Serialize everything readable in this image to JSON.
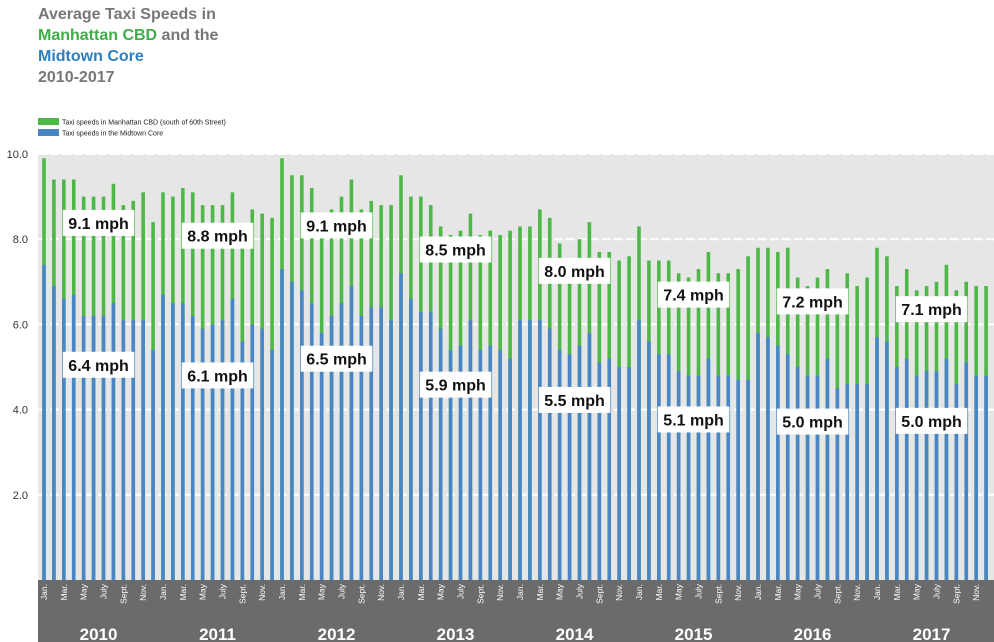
{
  "title": {
    "line1": "Average Taxi Speeds in",
    "line2_green": "Manhattan CBD",
    "line2_rest": " and the",
    "line3_blue": "Midtown Core",
    "line4": "2010-2017"
  },
  "colors": {
    "cbd": "#4db848",
    "midtown": "#4a86c5",
    "plot_bg": "#e6e6e6",
    "axis_bg": "#6b6b6b",
    "title_gray": "#777777"
  },
  "chart_data": {
    "type": "bar",
    "legend": [
      "Taxi speeds in Manhattan CBD (south of 60th Street)",
      "Taxi speeds in the Midtown Core"
    ],
    "legend_position": "top-left",
    "ylim": [
      0,
      10
    ],
    "yticks": [
      "2.0",
      "4.0",
      "6.0",
      "8.0",
      "10.0"
    ],
    "grid": true,
    "month_labels": [
      "Jan.",
      "",
      "Mar.",
      "",
      "May",
      "",
      "July",
      "",
      "Sept.",
      "",
      "Nov.",
      ""
    ],
    "years": [
      {
        "year": "2010",
        "cbd_avg_label": "9.1 mph",
        "midtown_avg_label": "6.4 mph",
        "cbd": [
          9.9,
          9.4,
          9.4,
          9.4,
          9.0,
          9.0,
          9.0,
          9.3,
          8.8,
          8.9,
          9.1,
          8.4
        ],
        "midtown": [
          7.4,
          6.9,
          6.6,
          6.7,
          6.2,
          6.2,
          6.2,
          6.5,
          6.1,
          6.1,
          6.1,
          5.4
        ]
      },
      {
        "year": "2011",
        "cbd_avg_label": "8.8 mph",
        "midtown_avg_label": "6.1 mph",
        "cbd": [
          9.1,
          9.0,
          9.2,
          9.1,
          8.8,
          8.8,
          8.8,
          9.1,
          8.3,
          8.7,
          8.6,
          8.5
        ],
        "midtown": [
          6.7,
          6.5,
          6.5,
          6.2,
          5.9,
          6.0,
          6.1,
          6.6,
          5.6,
          6.0,
          5.9,
          5.4
        ]
      },
      {
        "year": "2012",
        "cbd_avg_label": "9.1 mph",
        "midtown_avg_label": "6.5 mph",
        "cbd": [
          9.9,
          9.5,
          9.5,
          9.2,
          8.5,
          8.7,
          9.0,
          9.4,
          8.7,
          8.9,
          8.8,
          8.8
        ],
        "midtown": [
          7.3,
          7.0,
          6.8,
          6.5,
          5.8,
          6.2,
          6.5,
          6.9,
          6.2,
          6.4,
          6.4,
          6.1
        ]
      },
      {
        "year": "2013",
        "cbd_avg_label": "8.5 mph",
        "midtown_avg_label": "5.9 mph",
        "cbd": [
          9.5,
          9.0,
          9.0,
          8.8,
          8.3,
          8.1,
          8.2,
          8.6,
          8.1,
          8.2,
          8.1,
          8.2
        ],
        "midtown": [
          7.2,
          6.6,
          6.3,
          6.3,
          5.9,
          5.4,
          5.5,
          6.1,
          5.4,
          5.5,
          5.4,
          5.2
        ]
      },
      {
        "year": "2014",
        "cbd_avg_label": "8.0 mph",
        "midtown_avg_label": "5.5 mph",
        "cbd": [
          8.3,
          8.3,
          8.7,
          8.5,
          7.9,
          7.5,
          8.0,
          8.4,
          7.7,
          7.7,
          7.5,
          7.6
        ],
        "midtown": [
          6.1,
          6.1,
          6.1,
          5.9,
          5.4,
          5.3,
          5.5,
          5.8,
          5.1,
          5.2,
          5.0,
          5.0
        ]
      },
      {
        "year": "2015",
        "cbd_avg_label": "7.4 mph",
        "midtown_avg_label": "5.1 mph",
        "cbd": [
          8.3,
          7.5,
          7.5,
          7.5,
          7.2,
          7.1,
          7.3,
          7.7,
          7.2,
          7.2,
          7.3,
          7.6
        ],
        "midtown": [
          6.1,
          5.6,
          5.3,
          5.3,
          4.9,
          4.8,
          4.8,
          5.2,
          4.8,
          4.8,
          4.7,
          4.7
        ]
      },
      {
        "year": "2016",
        "cbd_avg_label": "7.2 mph",
        "midtown_avg_label": "5.0 mph",
        "cbd": [
          7.8,
          7.8,
          7.7,
          7.8,
          7.1,
          6.9,
          7.1,
          7.3,
          6.8,
          7.2,
          6.9,
          7.1
        ],
        "midtown": [
          5.8,
          5.7,
          5.5,
          5.3,
          5.0,
          4.8,
          4.8,
          5.2,
          4.5,
          4.6,
          4.6,
          4.6
        ]
      },
      {
        "year": "2017",
        "cbd_avg_label": "7.1 mph",
        "midtown_avg_label": "5.0 mph",
        "cbd": [
          7.8,
          7.6,
          6.9,
          7.3,
          6.8,
          6.9,
          7.0,
          7.4,
          6.8,
          7.0,
          6.9,
          6.9
        ],
        "midtown": [
          5.7,
          5.6,
          5.0,
          5.2,
          4.8,
          4.9,
          4.9,
          5.2,
          4.6,
          5.1,
          4.8,
          4.8
        ]
      }
    ]
  }
}
